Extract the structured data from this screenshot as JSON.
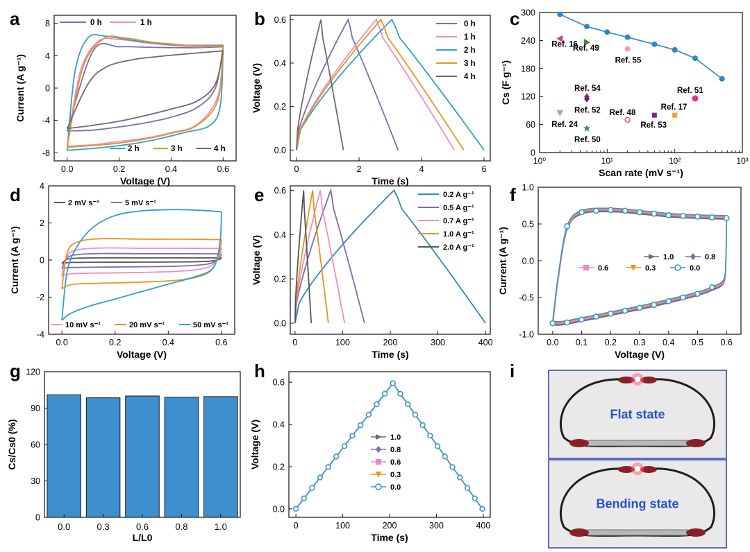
{
  "figure": {
    "panel_letters": [
      "a",
      "b",
      "c",
      "d",
      "e",
      "f",
      "g",
      "h",
      "i"
    ]
  },
  "chart_data": [
    {
      "panel": "a",
      "type": "line",
      "xlabel": "Voltage (V)",
      "ylabel": "Current (A g⁻¹)",
      "xlim": [
        -0.05,
        0.65
      ],
      "ylim": [
        -9,
        9
      ],
      "xticks": [
        0.0,
        0.2,
        0.4,
        0.6
      ],
      "xtick_labels": [
        "0.0",
        "0.2",
        "0.4",
        "0.6"
      ],
      "yticks": [
        -8,
        -4,
        0,
        4,
        8
      ],
      "ytick_labels": [
        "-8",
        "-4",
        "0",
        "4",
        "8"
      ],
      "legend_top": [
        "0 h",
        "1 h"
      ],
      "legend_bottom": [
        "2 h",
        "3 h",
        "4 h"
      ],
      "series": [
        {
          "name": "0 h",
          "color": "#7b6bb3",
          "upper": [
            [
              0,
              -5.3
            ],
            [
              0.1,
              4.6
            ],
            [
              0.2,
              5.1
            ],
            [
              0.3,
              5.05
            ],
            [
              0.4,
              5.0
            ],
            [
              0.5,
              5.0
            ],
            [
              0.6,
              5.1
            ]
          ],
          "lower": [
            [
              0.6,
              5.1
            ],
            [
              0.57,
              0
            ],
            [
              0.5,
              -2.4
            ],
            [
              0.4,
              -3.6
            ],
            [
              0.3,
              -4.3
            ],
            [
              0.2,
              -4.8
            ],
            [
              0.1,
              -5.2
            ],
            [
              0,
              -5.3
            ]
          ]
        },
        {
          "name": "1 h",
          "color": "#f08cc8",
          "upper": [
            [
              0,
              -7.2
            ],
            [
              0.05,
              2.0
            ],
            [
              0.12,
              5.8
            ],
            [
              0.2,
              6.0
            ],
            [
              0.3,
              5.6
            ],
            [
              0.4,
              5.3
            ],
            [
              0.5,
              5.1
            ],
            [
              0.6,
              5.2
            ]
          ],
          "lower": [
            [
              0.6,
              5.2
            ],
            [
              0.58,
              -1.0
            ],
            [
              0.5,
              -4.5
            ],
            [
              0.4,
              -5.5
            ],
            [
              0.3,
              -6.2
            ],
            [
              0.2,
              -6.6
            ],
            [
              0.1,
              -7.0
            ],
            [
              0,
              -7.2
            ]
          ]
        },
        {
          "name": "2 h",
          "color": "#2f9fd0",
          "upper": [
            [
              0,
              -7.7
            ],
            [
              0.03,
              2.0
            ],
            [
              0.08,
              6.2
            ],
            [
              0.15,
              6.4
            ],
            [
              0.25,
              5.9
            ],
            [
              0.35,
              5.5
            ],
            [
              0.45,
              5.3
            ],
            [
              0.6,
              5.3
            ]
          ],
          "lower": [
            [
              0.6,
              5.3
            ],
            [
              0.59,
              -2.0
            ],
            [
              0.55,
              -4.6
            ],
            [
              0.45,
              -5.5
            ],
            [
              0.35,
              -6.3
            ],
            [
              0.25,
              -6.9
            ],
            [
              0.12,
              -7.4
            ],
            [
              0,
              -7.7
            ]
          ]
        },
        {
          "name": "3 h",
          "color": "#e8941c",
          "upper": [
            [
              0,
              -7.3
            ],
            [
              0.06,
              2.5
            ],
            [
              0.14,
              6.1
            ],
            [
              0.22,
              6.2
            ],
            [
              0.32,
              5.7
            ],
            [
              0.42,
              5.4
            ],
            [
              0.5,
              5.2
            ],
            [
              0.6,
              5.2
            ]
          ],
          "lower": [
            [
              0.6,
              5.2
            ],
            [
              0.58,
              -1.5
            ],
            [
              0.5,
              -4.6
            ],
            [
              0.4,
              -5.6
            ],
            [
              0.3,
              -6.3
            ],
            [
              0.2,
              -6.8
            ],
            [
              0.1,
              -7.1
            ],
            [
              0,
              -7.3
            ]
          ]
        },
        {
          "name": "4 h",
          "color": "#6b6b6b",
          "upper": [
            [
              0,
              -5.0
            ],
            [
              0.08,
              0.5
            ],
            [
              0.15,
              2.6
            ],
            [
              0.25,
              3.5
            ],
            [
              0.35,
              3.9
            ],
            [
              0.45,
              4.2
            ],
            [
              0.6,
              4.6
            ]
          ],
          "lower": [
            [
              0.6,
              4.6
            ],
            [
              0.57,
              0.5
            ],
            [
              0.5,
              -1.6
            ],
            [
              0.4,
              -2.6
            ],
            [
              0.3,
              -3.4
            ],
            [
              0.2,
              -4.1
            ],
            [
              0.1,
              -4.6
            ],
            [
              0,
              -5.0
            ]
          ]
        }
      ]
    },
    {
      "panel": "b",
      "type": "line",
      "xlabel": "Time (s)",
      "ylabel": "Voltage (V)",
      "xlim": [
        -0.2,
        6.2
      ],
      "ylim": [
        -0.05,
        0.62
      ],
      "xticks": [
        0,
        2,
        4,
        6
      ],
      "xtick_labels": [
        "0",
        "2",
        "4",
        "6"
      ],
      "yticks": [
        0.0,
        0.2,
        0.4,
        0.6
      ],
      "ytick_labels": [
        "0.0",
        "0.2",
        "0.4",
        "0.6"
      ],
      "legend": [
        "0 h",
        "1 h",
        "2 h",
        "3 h",
        "4 h"
      ],
      "series": [
        {
          "name": "0 h",
          "color": "#7b6bb3",
          "peak_time": 1.65,
          "end_time": 3.25
        },
        {
          "name": "1 h",
          "color": "#f08cc8",
          "peak_time": 2.55,
          "end_time": 5.05
        },
        {
          "name": "2 h",
          "color": "#2f9fd0",
          "peak_time": 3.05,
          "end_time": 6.0
        },
        {
          "name": "3 h",
          "color": "#e8941c",
          "peak_time": 2.7,
          "end_time": 5.35
        },
        {
          "name": "4 h",
          "color": "#6b6b6b",
          "peak_time": 0.78,
          "end_time": 1.5
        }
      ]
    },
    {
      "panel": "c",
      "type": "scatter",
      "xlabel": "Scan rate (mV s⁻¹)",
      "ylabel": "Cs (F g⁻¹)",
      "xscale": "log",
      "xlim": [
        1,
        1000
      ],
      "ylim": [
        0,
        300
      ],
      "xtick_labels": [
        "10⁰",
        "10¹",
        "10²",
        "10³"
      ],
      "yticks": [
        0,
        60,
        120,
        180,
        240,
        300
      ],
      "ytick_labels": [
        "0",
        "60",
        "120",
        "180",
        "240",
        "300"
      ],
      "line_series": {
        "color": "#2f86c8",
        "x": [
          2,
          5,
          10,
          20,
          50,
          100,
          200,
          500
        ],
        "y": [
          296,
          270,
          258,
          247,
          232,
          220,
          202,
          158
        ]
      },
      "refs": [
        {
          "label": "Ref. 16",
          "x": 2,
          "y": 244,
          "color": "#e6338a",
          "marker": "tri-left"
        },
        {
          "label": "Ref. 49",
          "x": 5,
          "y": 236,
          "color": "#3d8a2e",
          "marker": "tri-right"
        },
        {
          "label": "Ref. 55",
          "x": 20,
          "y": 222,
          "color": "#e8a0c8",
          "marker": "hex"
        },
        {
          "label": "Ref. 54",
          "x": 5,
          "y": 120,
          "color": "#c0392b",
          "marker": "diamond"
        },
        {
          "label": "Ref. 52",
          "x": 5,
          "y": 115,
          "color": "#6a1b9a",
          "marker": "diamond"
        },
        {
          "label": "Ref. 24",
          "x": 2,
          "y": 85,
          "color": "#9aa5e0",
          "marker": "tri-down"
        },
        {
          "label": "Ref. 50",
          "x": 5,
          "y": 52,
          "color": "#2e8b57",
          "marker": "star"
        },
        {
          "label": "Ref. 48",
          "x": 20,
          "y": 70,
          "color": "#e05a6a",
          "marker": "circle-open"
        },
        {
          "label": "Ref. 53",
          "x": 50,
          "y": 80,
          "color": "#7b2a6a",
          "marker": "square"
        },
        {
          "label": "Ref. 17",
          "x": 100,
          "y": 80,
          "color": "#f0a030",
          "marker": "square"
        },
        {
          "label": "Ref. 51",
          "x": 200,
          "y": 116,
          "color": "#e6338a",
          "marker": "circle"
        }
      ]
    },
    {
      "panel": "d",
      "type": "line",
      "xlabel": "Voltage (V)",
      "ylabel": "Current (A g⁻¹)",
      "xlim": [
        -0.05,
        0.65
      ],
      "ylim": [
        -4,
        4
      ],
      "xticks": [
        0.0,
        0.2,
        0.4,
        0.6
      ],
      "xtick_labels": [
        "0.0",
        "0.2",
        "0.4",
        "0.6"
      ],
      "yticks": [
        -4,
        -2,
        0,
        2,
        4
      ],
      "ytick_labels": [
        "-4",
        "-2",
        "0",
        "2",
        "4"
      ],
      "legend_top": [
        "2 mV s⁻¹",
        "5 mV s⁻¹"
      ],
      "legend_bottom": [
        "10 mV s⁻¹",
        "20 mV s⁻¹",
        "50 mV s⁻¹"
      ],
      "series": [
        {
          "name": "2 mV s⁻¹",
          "color": "#555555",
          "top": 0.12,
          "bottom": -0.12,
          "start": -0.18
        },
        {
          "name": "5 mV s⁻¹",
          "color": "#7b6bb3",
          "top": 0.35,
          "bottom": -0.38,
          "start": -0.45
        },
        {
          "name": "10 mV s⁻¹",
          "color": "#f08cc8",
          "top": 0.65,
          "bottom": -0.7,
          "start": -0.85
        },
        {
          "name": "20 mV s⁻¹",
          "color": "#e8941c",
          "top": 1.15,
          "bottom": -1.25,
          "start": -1.55
        },
        {
          "name": "50 mV s⁻¹",
          "color": "#2f9fd0",
          "top": 2.7,
          "bottom": -2.5,
          "start": -3.25
        }
      ]
    },
    {
      "panel": "e",
      "type": "line",
      "xlabel": "Time (s)",
      "ylabel": "Voltage (V)",
      "xlim": [
        -10,
        410
      ],
      "ylim": [
        -0.05,
        0.62
      ],
      "xticks": [
        0,
        100,
        200,
        300,
        400
      ],
      "xtick_labels": [
        "0",
        "100",
        "200",
        "300",
        "400"
      ],
      "yticks": [
        0.0,
        0.2,
        0.4,
        0.6
      ],
      "ytick_labels": [
        "0.0",
        "0.2",
        "0.4",
        "0.6"
      ],
      "legend": [
        "0.2 A g⁻¹",
        "0.5 A g⁻¹",
        "0.7 A g⁻¹",
        "1.0 A g⁻¹",
        "2.0 A g⁻¹"
      ],
      "series": [
        {
          "name": "0.2 A g⁻¹",
          "color": "#2f86c8",
          "peak_time": 208,
          "end_time": 400
        },
        {
          "name": "0.5 A g⁻¹",
          "color": "#7b6bb3",
          "peak_time": 75,
          "end_time": 146
        },
        {
          "name": "0.7 A g⁻¹",
          "color": "#f08cc8",
          "peak_time": 53,
          "end_time": 104
        },
        {
          "name": "1.0 A g⁻¹",
          "color": "#e8941c",
          "peak_time": 37,
          "end_time": 70
        },
        {
          "name": "2.0 A g⁻¹",
          "color": "#555555",
          "peak_time": 18,
          "end_time": 34
        }
      ]
    },
    {
      "panel": "f",
      "type": "line",
      "xlabel": "Voltage (V)",
      "ylabel": "Current (A g⁻¹)",
      "xlim": [
        -0.05,
        0.65
      ],
      "ylim": [
        -1.0,
        1.0
      ],
      "xticks": [
        0.0,
        0.1,
        0.2,
        0.3,
        0.4,
        0.5,
        0.6
      ],
      "xtick_labels": [
        "0.0",
        "0.1",
        "0.2",
        "0.3",
        "0.4",
        "0.5",
        "0.6"
      ],
      "yticks": [
        -1.0,
        -0.5,
        0.0,
        0.5,
        1.0
      ],
      "ytick_labels": [
        "-1.0",
        "-0.5",
        "0.0",
        "0.5",
        "1.0"
      ],
      "legend": [
        "1.0",
        "0.8",
        "0.6",
        "0.3",
        "0.0"
      ],
      "series_colors": [
        "#6b6b6b",
        "#7b6bb3",
        "#e88ac8",
        "#e8941c",
        "#3b95cf"
      ]
    },
    {
      "panel": "g",
      "type": "bar",
      "xlabel": "L/L0",
      "ylabel": "Cs/Cs0 (%)",
      "categories": [
        "0.0",
        "0.3",
        "0.6",
        "0.8",
        "1.0"
      ],
      "values": [
        101,
        98.5,
        100,
        99,
        99.5
      ],
      "ylim": [
        0,
        120
      ],
      "yticks": [
        0,
        30,
        60,
        90,
        120
      ],
      "ytick_labels": [
        "0",
        "30",
        "60",
        "90",
        "120"
      ],
      "bar_color": "#3d8fd0"
    },
    {
      "panel": "h",
      "type": "line",
      "xlabel": "Time (s)",
      "ylabel": "Voltage (V)",
      "xlim": [
        -15,
        415
      ],
      "ylim": [
        -0.04,
        0.65
      ],
      "xticks": [
        0,
        100,
        200,
        300,
        400
      ],
      "xtick_labels": [
        "0",
        "100",
        "200",
        "300",
        "400"
      ],
      "yticks": [
        0.0,
        0.2,
        0.4,
        0.6
      ],
      "ytick_labels": [
        "0.0",
        "0.2",
        "0.4",
        "0.6"
      ],
      "legend": [
        "1.0",
        "0.8",
        "0.6",
        "0.3",
        "0.0"
      ],
      "series_colors": [
        "#6b6b6b",
        "#7b6bb3",
        "#e88ac8",
        "#e8941c",
        "#3b95cf"
      ],
      "peak_time": 207,
      "end_time": 398
    }
  ],
  "photo_panel": {
    "panel": "i",
    "top_label": "Flat state",
    "bottom_label": "Bending state",
    "label_color": "#2a4fc8"
  }
}
